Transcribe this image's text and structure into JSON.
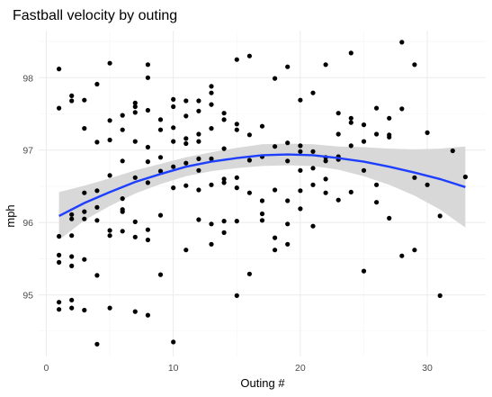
{
  "chart_data": {
    "type": "scatter",
    "title": "Fastball velocity by outing",
    "xlabel": "Outing #",
    "ylabel": "mph",
    "xlim": [
      -0.6,
      34.6
    ],
    "ylim": [
      94.15,
      98.65
    ],
    "x_ticks": [
      0,
      10,
      20,
      30
    ],
    "y_ticks": [
      95,
      96,
      97,
      98
    ],
    "grid": true,
    "colors": {
      "points": "#000000",
      "smooth_line": "#1f3fff",
      "confidence_band": "#d6d6d6"
    },
    "points": [
      {
        "x": 1,
        "y": 98.12
      },
      {
        "x": 1,
        "y": 97.58
      },
      {
        "x": 1,
        "y": 95.81
      },
      {
        "x": 1,
        "y": 95.55
      },
      {
        "x": 1,
        "y": 95.45
      },
      {
        "x": 1,
        "y": 94.9
      },
      {
        "x": 1,
        "y": 94.8
      },
      {
        "x": 2,
        "y": 97.75
      },
      {
        "x": 2,
        "y": 97.68
      },
      {
        "x": 2,
        "y": 96.11
      },
      {
        "x": 2,
        "y": 96.05
      },
      {
        "x": 2,
        "y": 95.82
      },
      {
        "x": 2,
        "y": 95.53
      },
      {
        "x": 2,
        "y": 95.4
      },
      {
        "x": 2,
        "y": 94.93
      },
      {
        "x": 2,
        "y": 94.82
      },
      {
        "x": 3,
        "y": 97.69
      },
      {
        "x": 3,
        "y": 97.3
      },
      {
        "x": 3,
        "y": 96.41
      },
      {
        "x": 3,
        "y": 96.15
      },
      {
        "x": 3,
        "y": 96.05
      },
      {
        "x": 3,
        "y": 95.49
      },
      {
        "x": 3,
        "y": 94.79
      },
      {
        "x": 4,
        "y": 97.91
      },
      {
        "x": 4,
        "y": 97.11
      },
      {
        "x": 4,
        "y": 96.44
      },
      {
        "x": 4,
        "y": 96.21
      },
      {
        "x": 4,
        "y": 96.03
      },
      {
        "x": 4,
        "y": 95.27
      },
      {
        "x": 4,
        "y": 94.32
      },
      {
        "x": 5,
        "y": 98.2
      },
      {
        "x": 5,
        "y": 97.41
      },
      {
        "x": 5,
        "y": 97.14
      },
      {
        "x": 5,
        "y": 96.65
      },
      {
        "x": 5,
        "y": 95.89
      },
      {
        "x": 5,
        "y": 95.82
      },
      {
        "x": 5,
        "y": 94.82
      },
      {
        "x": 6,
        "y": 97.48
      },
      {
        "x": 6,
        "y": 97.28
      },
      {
        "x": 6,
        "y": 96.85
      },
      {
        "x": 6,
        "y": 96.33
      },
      {
        "x": 6,
        "y": 96.18
      },
      {
        "x": 6,
        "y": 96.15
      },
      {
        "x": 6,
        "y": 95.88
      },
      {
        "x": 7,
        "y": 97.65
      },
      {
        "x": 7,
        "y": 97.6
      },
      {
        "x": 7,
        "y": 97.52
      },
      {
        "x": 7,
        "y": 97.12
      },
      {
        "x": 7,
        "y": 96.62
      },
      {
        "x": 7,
        "y": 96.01
      },
      {
        "x": 7,
        "y": 95.8
      },
      {
        "x": 7,
        "y": 94.77
      },
      {
        "x": 8,
        "y": 98.18
      },
      {
        "x": 8,
        "y": 98.0
      },
      {
        "x": 8,
        "y": 97.55
      },
      {
        "x": 8,
        "y": 97.04
      },
      {
        "x": 8,
        "y": 96.84
      },
      {
        "x": 8,
        "y": 96.55
      },
      {
        "x": 8,
        "y": 95.9
      },
      {
        "x": 8,
        "y": 95.76
      },
      {
        "x": 8,
        "y": 94.72
      },
      {
        "x": 9,
        "y": 97.42
      },
      {
        "x": 9,
        "y": 97.28
      },
      {
        "x": 9,
        "y": 96.9
      },
      {
        "x": 9,
        "y": 96.71
      },
      {
        "x": 9,
        "y": 96.1
      },
      {
        "x": 9,
        "y": 95.28
      },
      {
        "x": 10,
        "y": 97.7
      },
      {
        "x": 10,
        "y": 97.6
      },
      {
        "x": 10,
        "y": 97.31
      },
      {
        "x": 10,
        "y": 97.12
      },
      {
        "x": 10,
        "y": 96.77
      },
      {
        "x": 10,
        "y": 96.48
      },
      {
        "x": 10,
        "y": 94.35
      },
      {
        "x": 11,
        "y": 97.68
      },
      {
        "x": 11,
        "y": 97.47
      },
      {
        "x": 11,
        "y": 97.16
      },
      {
        "x": 11,
        "y": 97.09
      },
      {
        "x": 11,
        "y": 96.82
      },
      {
        "x": 11,
        "y": 96.51
      },
      {
        "x": 11,
        "y": 95.62
      },
      {
        "x": 12,
        "y": 97.68
      },
      {
        "x": 12,
        "y": 97.54
      },
      {
        "x": 12,
        "y": 97.22
      },
      {
        "x": 12,
        "y": 97.12
      },
      {
        "x": 12,
        "y": 96.88
      },
      {
        "x": 12,
        "y": 96.72
      },
      {
        "x": 12,
        "y": 96.45
      },
      {
        "x": 12,
        "y": 96.04
      },
      {
        "x": 13,
        "y": 97.88
      },
      {
        "x": 13,
        "y": 97.79
      },
      {
        "x": 13,
        "y": 97.63
      },
      {
        "x": 13,
        "y": 97.3
      },
      {
        "x": 13,
        "y": 96.88
      },
      {
        "x": 13,
        "y": 96.52
      },
      {
        "x": 13,
        "y": 95.98
      },
      {
        "x": 13,
        "y": 95.7
      },
      {
        "x": 14,
        "y": 97.51
      },
      {
        "x": 14,
        "y": 97.42
      },
      {
        "x": 14,
        "y": 97.02
      },
      {
        "x": 14,
        "y": 96.6
      },
      {
        "x": 14,
        "y": 96.55
      },
      {
        "x": 14,
        "y": 96.02
      },
      {
        "x": 14,
        "y": 95.86
      },
      {
        "x": 15,
        "y": 98.25
      },
      {
        "x": 15,
        "y": 97.36
      },
      {
        "x": 15,
        "y": 97.28
      },
      {
        "x": 15,
        "y": 96.62
      },
      {
        "x": 15,
        "y": 96.48
      },
      {
        "x": 15,
        "y": 96.02
      },
      {
        "x": 15,
        "y": 94.99
      },
      {
        "x": 16,
        "y": 98.3
      },
      {
        "x": 16,
        "y": 97.21
      },
      {
        "x": 16,
        "y": 96.86
      },
      {
        "x": 16,
        "y": 96.41
      },
      {
        "x": 16,
        "y": 95.29
      },
      {
        "x": 17,
        "y": 97.33
      },
      {
        "x": 17,
        "y": 96.91
      },
      {
        "x": 17,
        "y": 96.3
      },
      {
        "x": 17,
        "y": 96.12
      },
      {
        "x": 17,
        "y": 96.03
      },
      {
        "x": 18,
        "y": 97.99
      },
      {
        "x": 18,
        "y": 97.05
      },
      {
        "x": 18,
        "y": 96.45
      },
      {
        "x": 18,
        "y": 95.79
      },
      {
        "x": 18,
        "y": 95.62
      },
      {
        "x": 19,
        "y": 98.15
      },
      {
        "x": 19,
        "y": 97.1
      },
      {
        "x": 19,
        "y": 96.85
      },
      {
        "x": 19,
        "y": 96.3
      },
      {
        "x": 19,
        "y": 95.98
      },
      {
        "x": 19,
        "y": 95.7
      },
      {
        "x": 20,
        "y": 97.69
      },
      {
        "x": 20,
        "y": 97.06
      },
      {
        "x": 20,
        "y": 96.98
      },
      {
        "x": 20,
        "y": 96.72
      },
      {
        "x": 20,
        "y": 96.44
      },
      {
        "x": 20,
        "y": 96.19
      },
      {
        "x": 21,
        "y": 97.79
      },
      {
        "x": 21,
        "y": 96.98
      },
      {
        "x": 21,
        "y": 96.75
      },
      {
        "x": 21,
        "y": 96.52
      },
      {
        "x": 21,
        "y": 95.95
      },
      {
        "x": 22,
        "y": 98.18
      },
      {
        "x": 22,
        "y": 96.9
      },
      {
        "x": 22,
        "y": 96.85
      },
      {
        "x": 22,
        "y": 96.6
      },
      {
        "x": 22,
        "y": 96.41
      },
      {
        "x": 23,
        "y": 97.51
      },
      {
        "x": 23,
        "y": 97.22
      },
      {
        "x": 23,
        "y": 96.91
      },
      {
        "x": 23,
        "y": 96.87
      },
      {
        "x": 23,
        "y": 96.31
      },
      {
        "x": 24,
        "y": 98.34
      },
      {
        "x": 24,
        "y": 97.44
      },
      {
        "x": 24,
        "y": 97.38
      },
      {
        "x": 24,
        "y": 97.06
      },
      {
        "x": 24,
        "y": 96.42
      },
      {
        "x": 25,
        "y": 97.35
      },
      {
        "x": 25,
        "y": 97.12
      },
      {
        "x": 25,
        "y": 96.72
      },
      {
        "x": 25,
        "y": 95.33
      },
      {
        "x": 26,
        "y": 97.58
      },
      {
        "x": 26,
        "y": 97.22
      },
      {
        "x": 26,
        "y": 96.52
      },
      {
        "x": 26,
        "y": 96.28
      },
      {
        "x": 27,
        "y": 97.44
      },
      {
        "x": 27,
        "y": 97.21
      },
      {
        "x": 27,
        "y": 97.18
      },
      {
        "x": 27,
        "y": 96.06
      },
      {
        "x": 28,
        "y": 98.49
      },
      {
        "x": 28,
        "y": 97.57
      },
      {
        "x": 28,
        "y": 95.54
      },
      {
        "x": 29,
        "y": 98.18
      },
      {
        "x": 29,
        "y": 96.62
      },
      {
        "x": 29,
        "y": 95.62
      },
      {
        "x": 30,
        "y": 97.24
      },
      {
        "x": 30,
        "y": 96.52
      },
      {
        "x": 31,
        "y": 96.09
      },
      {
        "x": 31,
        "y": 94.99
      },
      {
        "x": 32,
        "y": 96.99
      },
      {
        "x": 33,
        "y": 96.63
      }
    ],
    "smooth": [
      {
        "x": 1,
        "y": 96.09,
        "lo": 95.76,
        "hi": 96.42
      },
      {
        "x": 3,
        "y": 96.27,
        "lo": 96.03,
        "hi": 96.51
      },
      {
        "x": 5,
        "y": 96.42,
        "lo": 96.23,
        "hi": 96.61
      },
      {
        "x": 7,
        "y": 96.56,
        "lo": 96.4,
        "hi": 96.72
      },
      {
        "x": 9,
        "y": 96.67,
        "lo": 96.53,
        "hi": 96.81
      },
      {
        "x": 11,
        "y": 96.77,
        "lo": 96.64,
        "hi": 96.9
      },
      {
        "x": 13,
        "y": 96.84,
        "lo": 96.71,
        "hi": 96.97
      },
      {
        "x": 15,
        "y": 96.89,
        "lo": 96.75,
        "hi": 97.03
      },
      {
        "x": 17,
        "y": 96.93,
        "lo": 96.78,
        "hi": 97.08
      },
      {
        "x": 19,
        "y": 96.94,
        "lo": 96.79,
        "hi": 97.09
      },
      {
        "x": 21,
        "y": 96.93,
        "lo": 96.78,
        "hi": 97.08
      },
      {
        "x": 23,
        "y": 96.89,
        "lo": 96.73,
        "hi": 97.05
      },
      {
        "x": 25,
        "y": 96.84,
        "lo": 96.64,
        "hi": 97.04
      },
      {
        "x": 27,
        "y": 96.77,
        "lo": 96.52,
        "hi": 97.02
      },
      {
        "x": 29,
        "y": 96.69,
        "lo": 96.37,
        "hi": 97.01
      },
      {
        "x": 31,
        "y": 96.6,
        "lo": 96.18,
        "hi": 97.02
      },
      {
        "x": 33,
        "y": 96.49,
        "lo": 95.93,
        "hi": 97.05
      }
    ]
  }
}
